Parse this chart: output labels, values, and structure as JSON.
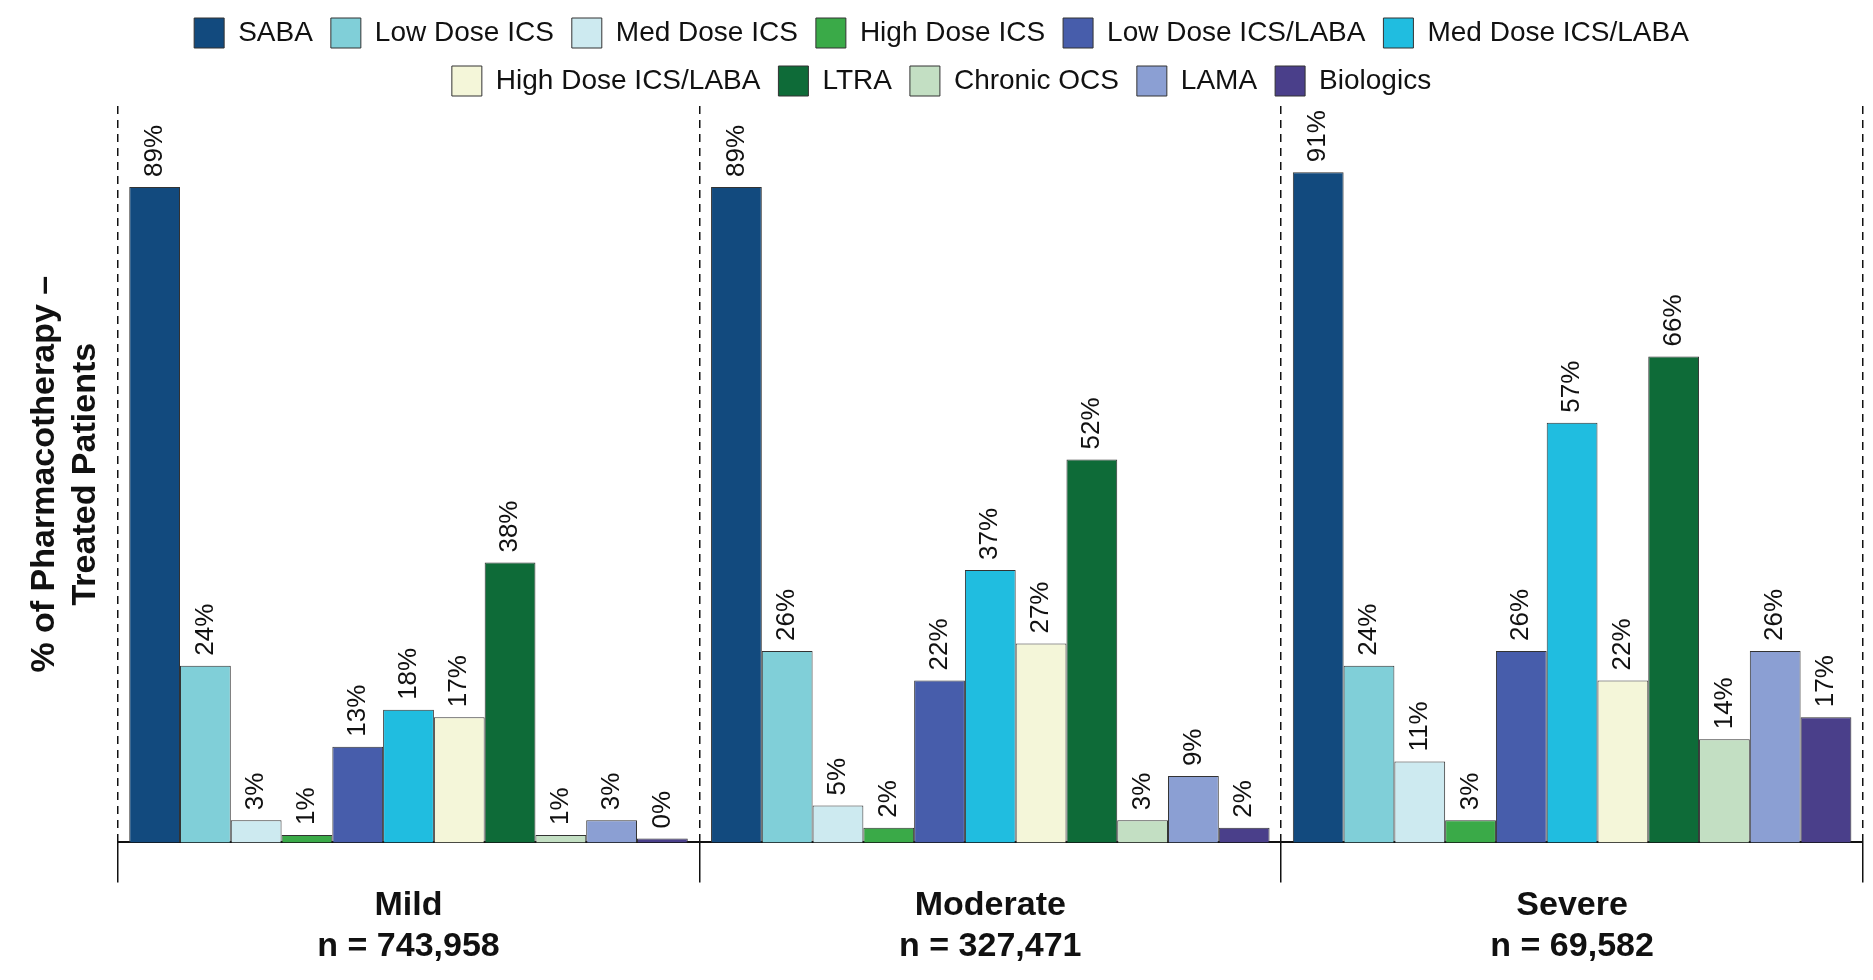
{
  "chart_data": {
    "type": "bar",
    "ylabel": "% of Pharmacotherapy –\nTreated Patients",
    "categories": [
      "Mild\nn = 743,958",
      "Moderate\nn = 327,471",
      "Severe\nn = 69,582"
    ],
    "ylim": [
      0,
      100
    ],
    "grid": "x",
    "legend": "top",
    "tick_labels": "x",
    "series": [
      {
        "name": "SABA",
        "color": "#124a7e",
        "values": [
          89,
          89,
          91
        ],
        "value_labels": [
          "89%",
          "89%",
          "91%"
        ]
      },
      {
        "name": "Low Dose ICS",
        "color": "#80cfd8",
        "values": [
          24,
          26,
          24
        ],
        "value_labels": [
          "24%",
          "26%",
          "24%"
        ]
      },
      {
        "name": "Med Dose ICS",
        "color": "#cdeaf0",
        "values": [
          3,
          5,
          11
        ],
        "value_labels": [
          "3%",
          "5%",
          "11%"
        ]
      },
      {
        "name": "High Dose ICS",
        "color": "#3aaa48",
        "values": [
          1,
          2,
          3
        ],
        "value_labels": [
          "1%",
          "2%",
          "3%"
        ]
      },
      {
        "name": "Low Dose ICS/LABA",
        "color": "#475dab",
        "values": [
          13,
          22,
          26
        ],
        "value_labels": [
          "13%",
          "22%",
          "26%"
        ]
      },
      {
        "name": "Med Dose ICS/LABA",
        "color": "#20bde0",
        "values": [
          18,
          37,
          57
        ],
        "value_labels": [
          "18%",
          "37%",
          "57%"
        ]
      },
      {
        "name": "High Dose ICS/LABA",
        "color": "#f4f6d9",
        "values": [
          17,
          27,
          22
        ],
        "value_labels": [
          "17%",
          "27%",
          "22%"
        ]
      },
      {
        "name": "LTRA",
        "color": "#0e6b38",
        "values": [
          38,
          52,
          66
        ],
        "value_labels": [
          "38%",
          "52%",
          "66%"
        ]
      },
      {
        "name": "Chronic OCS",
        "color": "#c3dfc3",
        "values": [
          1,
          3,
          14
        ],
        "value_labels": [
          "1%",
          "3%",
          "14%"
        ]
      },
      {
        "name": "LAMA",
        "color": "#8b9fd3",
        "values": [
          3,
          9,
          26
        ],
        "value_labels": [
          "3%",
          "9%",
          "26%"
        ]
      },
      {
        "name": "Biologics",
        "color": "#4a3f8a",
        "values": [
          0,
          2,
          17
        ],
        "value_labels": [
          "0%",
          "2%",
          "17%"
        ]
      }
    ]
  }
}
